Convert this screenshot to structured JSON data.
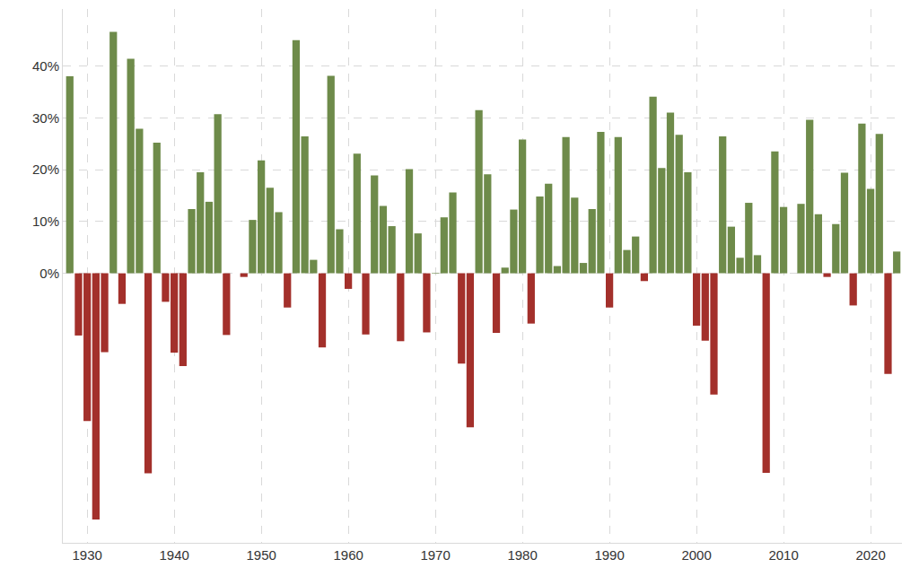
{
  "chart_data": {
    "type": "bar",
    "x": [
      1928,
      1929,
      1930,
      1931,
      1932,
      1933,
      1934,
      1935,
      1936,
      1937,
      1938,
      1939,
      1940,
      1941,
      1942,
      1943,
      1944,
      1945,
      1946,
      1947,
      1948,
      1949,
      1950,
      1951,
      1952,
      1953,
      1954,
      1955,
      1956,
      1957,
      1958,
      1959,
      1960,
      1961,
      1962,
      1963,
      1964,
      1965,
      1966,
      1967,
      1968,
      1969,
      1970,
      1971,
      1972,
      1973,
      1974,
      1975,
      1976,
      1977,
      1978,
      1979,
      1980,
      1981,
      1982,
      1983,
      1984,
      1985,
      1986,
      1987,
      1988,
      1989,
      1990,
      1991,
      1992,
      1993,
      1994,
      1995,
      1996,
      1997,
      1998,
      1999,
      2000,
      2001,
      2002,
      2003,
      2004,
      2005,
      2006,
      2007,
      2008,
      2009,
      2010,
      2011,
      2012,
      2013,
      2014,
      2015,
      2016,
      2017,
      2018,
      2019,
      2020,
      2021,
      2022,
      2023
    ],
    "values": [
      38.0,
      -12.0,
      -28.5,
      -47.5,
      -15.2,
      46.6,
      -5.9,
      41.4,
      27.9,
      -38.6,
      25.2,
      -5.5,
      -15.3,
      -17.9,
      12.4,
      19.5,
      13.8,
      30.7,
      -11.9,
      0.0,
      -0.7,
      10.3,
      21.8,
      16.5,
      11.8,
      -6.6,
      45.0,
      26.4,
      2.6,
      -14.3,
      38.1,
      8.5,
      -3.0,
      23.1,
      -11.8,
      18.9,
      13.0,
      9.1,
      -13.1,
      20.1,
      7.7,
      -11.4,
      0.1,
      10.8,
      15.6,
      -17.4,
      -29.7,
      31.5,
      19.1,
      -11.5,
      1.1,
      12.3,
      25.8,
      -9.7,
      14.8,
      17.3,
      1.4,
      26.3,
      14.6,
      2.0,
      12.4,
      27.3,
      -6.6,
      26.3,
      4.5,
      7.1,
      -1.5,
      34.1,
      20.3,
      31.0,
      26.7,
      19.5,
      -10.1,
      -13.0,
      -23.4,
      26.4,
      9.0,
      3.0,
      13.6,
      3.5,
      -38.5,
      23.5,
      12.8,
      0.0,
      13.4,
      29.6,
      11.4,
      -0.7,
      9.5,
      19.4,
      -6.2,
      28.9,
      16.3,
      26.9,
      -19.4,
      4.2
    ],
    "colors": [
      "#6e8b4a",
      "#a3302b",
      "#a3302b",
      "#a3302b",
      "#a3302b",
      "#6e8b4a",
      "#a3302b",
      "#6e8b4a",
      "#6e8b4a",
      "#a3302b",
      "#6e8b4a",
      "#a3302b",
      "#a3302b",
      "#a3302b",
      "#6e8b4a",
      "#6e8b4a",
      "#6e8b4a",
      "#6e8b4a",
      "#a3302b",
      "#6e8b4a",
      "#a3302b",
      "#6e8b4a",
      "#6e8b4a",
      "#6e8b4a",
      "#6e8b4a",
      "#a3302b",
      "#6e8b4a",
      "#6e8b4a",
      "#6e8b4a",
      "#a3302b",
      "#6e8b4a",
      "#6e8b4a",
      "#a3302b",
      "#6e8b4a",
      "#a3302b",
      "#6e8b4a",
      "#6e8b4a",
      "#6e8b4a",
      "#a3302b",
      "#6e8b4a",
      "#6e8b4a",
      "#a3302b",
      "#6e8b4a",
      "#6e8b4a",
      "#6e8b4a",
      "#a3302b",
      "#a3302b",
      "#6e8b4a",
      "#6e8b4a",
      "#a3302b",
      "#6e8b4a",
      "#6e8b4a",
      "#6e8b4a",
      "#a3302b",
      "#6e8b4a",
      "#6e8b4a",
      "#6e8b4a",
      "#6e8b4a",
      "#6e8b4a",
      "#6e8b4a",
      "#6e8b4a",
      "#6e8b4a",
      "#a3302b",
      "#6e8b4a",
      "#6e8b4a",
      "#6e8b4a",
      "#a3302b",
      "#6e8b4a",
      "#6e8b4a",
      "#6e8b4a",
      "#6e8b4a",
      "#6e8b4a",
      "#a3302b",
      "#a3302b",
      "#a3302b",
      "#6e8b4a",
      "#6e8b4a",
      "#6e8b4a",
      "#6e8b4a",
      "#6e8b4a",
      "#a3302b",
      "#6e8b4a",
      "#6e8b4a",
      "#6e8b4a",
      "#6e8b4a",
      "#6e8b4a",
      "#6e8b4a",
      "#a3302b",
      "#6e8b4a",
      "#6e8b4a",
      "#a3302b",
      "#6e8b4a",
      "#6e8b4a",
      "#6e8b4a",
      "#a3302b",
      "#6e8b4a"
    ],
    "xlim": [
      1927.2,
      2023.6
    ],
    "xticks": [
      1930,
      1940,
      1950,
      1960,
      1970,
      1980,
      1990,
      2000,
      2010,
      2020
    ],
    "ylim": [
      -52,
      51
    ],
    "yticks": [
      {
        "value": 0,
        "label": "0%"
      },
      {
        "value": 10,
        "label": "10%"
      },
      {
        "value": 20,
        "label": "20%"
      },
      {
        "value": 30,
        "label": "30%"
      },
      {
        "value": 40,
        "label": "40%"
      }
    ],
    "grid": true
  }
}
